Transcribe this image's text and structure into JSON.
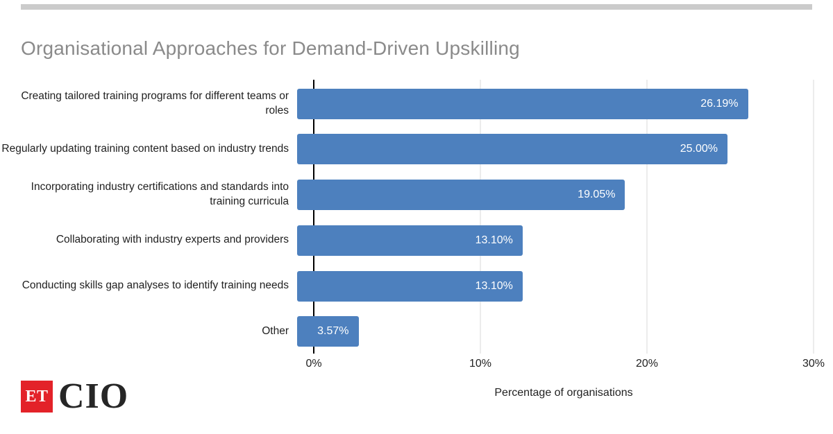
{
  "page": {
    "top_strip_color": "#cbcbcb"
  },
  "chart_data": {
    "type": "bar",
    "orientation": "horizontal",
    "title": "Organisational Approaches for Demand-Driven Upskilling",
    "xlabel": "Percentage of organisations",
    "xlim": [
      0,
      30
    ],
    "x_ticks": [
      {
        "label": "0%",
        "value": 0
      },
      {
        "label": "10%",
        "value": 10
      },
      {
        "label": "20%",
        "value": 20
      },
      {
        "label": "30%",
        "value": 30
      }
    ],
    "grid": "vertical",
    "legend": "none",
    "bar_color": "#4d80be",
    "categories": [
      "Creating tailored training programs for different teams or roles",
      "Regularly updating training content based on industry trends",
      "Incorporating industry certifications and standards into training curricula",
      "Collaborating with industry experts and providers",
      "Conducting skills gap analyses to identify training needs",
      "Other"
    ],
    "values": [
      26.19,
      25.0,
      19.05,
      13.1,
      13.1,
      3.57
    ],
    "value_labels": [
      "26.19%",
      "25.00%",
      "19.05%",
      "13.10%",
      "13.10%",
      "3.57%"
    ]
  },
  "logo": {
    "et_label": "ET",
    "cio_label": "CIO",
    "red_color": "#e32229"
  }
}
